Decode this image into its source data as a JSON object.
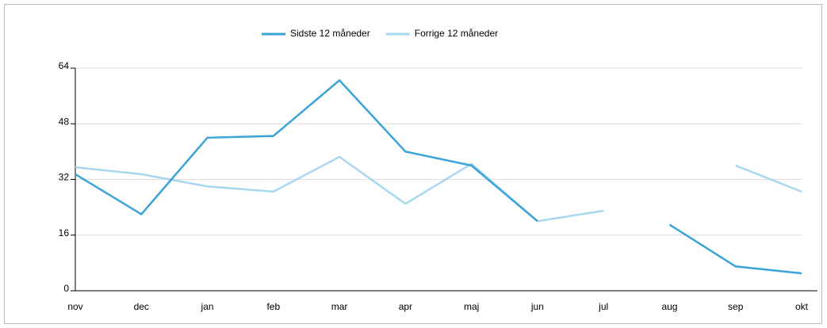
{
  "chart_data": {
    "type": "line",
    "categories": [
      "nov",
      "dec",
      "jan",
      "feb",
      "mar",
      "apr",
      "maj",
      "jun",
      "jul",
      "aug",
      "sep",
      "okt"
    ],
    "series": [
      {
        "name": "Sidste 12 måneder",
        "color": "#3aa3d8",
        "values": [
          33.5,
          22,
          44,
          44.5,
          60.5,
          40,
          36,
          20,
          null,
          19,
          7,
          5
        ]
      },
      {
        "name": "Forrige 12 måneder",
        "color": "#a8d8ef",
        "values": [
          35.5,
          33.5,
          30,
          28.5,
          38.5,
          25,
          36.5,
          20,
          23,
          null,
          36,
          28.5
        ]
      }
    ],
    "ylim": [
      0,
      64
    ],
    "yticks": [
      0,
      16,
      32,
      48,
      64
    ],
    "grid": true,
    "legend": "top"
  }
}
